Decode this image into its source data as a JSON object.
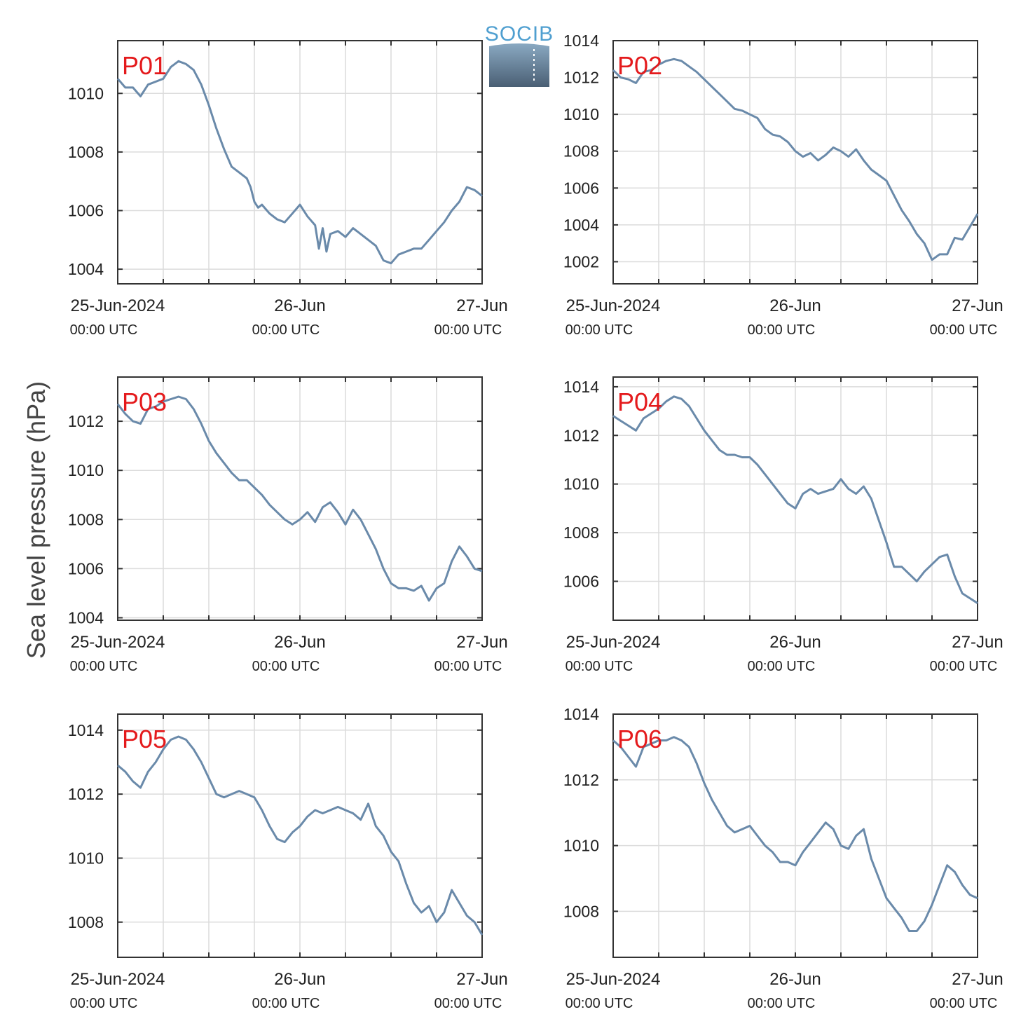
{
  "logo": {
    "text": "SOCIB"
  },
  "colors": {
    "line": "#6a8aaa",
    "station_label": "#e41a1c",
    "grid": "#dcdcdc",
    "axis": "#333333"
  },
  "chart_data": [
    {
      "type": "line",
      "station": "P01",
      "ylim": [
        1003.5,
        1011.8
      ],
      "yticks": [
        1004,
        1006,
        1008,
        1010
      ],
      "xlim": [
        0,
        48
      ],
      "xticks": [
        0,
        24,
        48
      ],
      "xticklabels": [
        [
          "25-Jun-2024",
          "00:00 UTC"
        ],
        [
          "26-Jun",
          "00:00 UTC"
        ],
        [
          "27-Jun",
          "00:00 UTC"
        ]
      ],
      "grid": true,
      "x": [
        0,
        1,
        2,
        3,
        4,
        5,
        6,
        7,
        8,
        9,
        10,
        11,
        12,
        13,
        14,
        15,
        16,
        17,
        17.5,
        18,
        18.5,
        19,
        20,
        21,
        22,
        23,
        24,
        25,
        26,
        26.5,
        27,
        27.5,
        28,
        29,
        30,
        31,
        32,
        33,
        34,
        35,
        36,
        37,
        38,
        39,
        40,
        41,
        42,
        43,
        44,
        45,
        46,
        47,
        48
      ],
      "y": [
        1010.5,
        1010.2,
        1010.2,
        1009.9,
        1010.3,
        1010.4,
        1010.5,
        1010.9,
        1011.1,
        1011.0,
        1010.8,
        1010.3,
        1009.6,
        1008.8,
        1008.1,
        1007.5,
        1007.3,
        1007.1,
        1006.8,
        1006.3,
        1006.1,
        1006.2,
        1005.9,
        1005.7,
        1005.6,
        1005.9,
        1006.2,
        1005.8,
        1005.5,
        1004.7,
        1005.4,
        1004.6,
        1005.2,
        1005.3,
        1005.1,
        1005.4,
        1005.2,
        1005.0,
        1004.8,
        1004.3,
        1004.2,
        1004.5,
        1004.6,
        1004.7,
        1004.7,
        1005.0,
        1005.3,
        1005.6,
        1006.0,
        1006.3,
        1006.8,
        1006.7,
        1006.5
      ]
    },
    {
      "type": "line",
      "station": "P02",
      "ylim": [
        1000.8,
        1014.0
      ],
      "yticks": [
        1002,
        1004,
        1006,
        1008,
        1010,
        1012,
        1014
      ],
      "xlim": [
        0,
        48
      ],
      "xticks": [
        0,
        24,
        48
      ],
      "xticklabels": [
        [
          "25-Jun-2024",
          "00:00 UTC"
        ],
        [
          "26-Jun",
          "00:00 UTC"
        ],
        [
          "27-Jun",
          "00:00 UTC"
        ]
      ],
      "grid": true,
      "x": [
        0,
        1,
        2,
        3,
        4,
        5,
        6,
        7,
        8,
        9,
        10,
        11,
        12,
        13,
        14,
        15,
        16,
        17,
        18,
        19,
        20,
        21,
        22,
        23,
        24,
        25,
        26,
        27,
        28,
        29,
        30,
        31,
        32,
        33,
        34,
        35,
        36,
        37,
        38,
        39,
        40,
        41,
        42,
        43,
        44,
        45,
        46,
        47,
        48
      ],
      "y": [
        1012.4,
        1012.0,
        1011.9,
        1011.7,
        1012.3,
        1012.4,
        1012.7,
        1012.9,
        1013.0,
        1012.9,
        1012.6,
        1012.3,
        1011.9,
        1011.5,
        1011.1,
        1010.7,
        1010.3,
        1010.2,
        1010.0,
        1009.8,
        1009.2,
        1008.9,
        1008.8,
        1008.5,
        1008.0,
        1007.7,
        1007.9,
        1007.5,
        1007.8,
        1008.2,
        1008.0,
        1007.7,
        1008.1,
        1007.5,
        1007.0,
        1006.7,
        1006.4,
        1005.6,
        1004.8,
        1004.2,
        1003.5,
        1003.0,
        1002.1,
        1002.4,
        1002.4,
        1003.3,
        1003.2,
        1003.9,
        1004.6
      ]
    },
    {
      "type": "line",
      "station": "P03",
      "ylim": [
        1003.9,
        1013.8
      ],
      "yticks": [
        1004,
        1006,
        1008,
        1010,
        1012
      ],
      "xlim": [
        0,
        48
      ],
      "xticks": [
        0,
        24,
        48
      ],
      "xticklabels": [
        [
          "25-Jun-2024",
          "00:00 UTC"
        ],
        [
          "26-Jun",
          "00:00 UTC"
        ],
        [
          "27-Jun",
          "00:00 UTC"
        ]
      ],
      "grid": true,
      "x": [
        0,
        1,
        2,
        3,
        4,
        5,
        6,
        7,
        8,
        9,
        10,
        11,
        12,
        13,
        14,
        15,
        16,
        17,
        18,
        19,
        20,
        21,
        22,
        23,
        24,
        25,
        26,
        27,
        28,
        29,
        30,
        31,
        32,
        33,
        34,
        35,
        36,
        37,
        38,
        39,
        40,
        41,
        42,
        43,
        44,
        45,
        46,
        47,
        48
      ],
      "y": [
        1012.7,
        1012.3,
        1012.0,
        1011.9,
        1012.5,
        1012.6,
        1012.8,
        1012.9,
        1013.0,
        1012.9,
        1012.5,
        1011.9,
        1011.2,
        1010.7,
        1010.3,
        1009.9,
        1009.6,
        1009.6,
        1009.3,
        1009.0,
        1008.6,
        1008.3,
        1008.0,
        1007.8,
        1008.0,
        1008.3,
        1007.9,
        1008.5,
        1008.7,
        1008.3,
        1007.8,
        1008.4,
        1008.0,
        1007.4,
        1006.8,
        1006.0,
        1005.4,
        1005.2,
        1005.2,
        1005.1,
        1005.3,
        1004.7,
        1005.2,
        1005.4,
        1006.3,
        1006.9,
        1006.5,
        1006.0,
        1005.9
      ]
    },
    {
      "type": "line",
      "station": "P04",
      "ylim": [
        1004.4,
        1014.4
      ],
      "yticks": [
        1006,
        1008,
        1010,
        1012,
        1014
      ],
      "xlim": [
        0,
        48
      ],
      "xticks": [
        0,
        24,
        48
      ],
      "xticklabels": [
        [
          "25-Jun-2024",
          "00:00 UTC"
        ],
        [
          "26-Jun",
          "00:00 UTC"
        ],
        [
          "27-Jun",
          "00:00 UTC"
        ]
      ],
      "grid": true,
      "x": [
        0,
        1,
        2,
        3,
        4,
        5,
        6,
        7,
        8,
        9,
        10,
        11,
        12,
        13,
        14,
        15,
        16,
        17,
        18,
        19,
        20,
        21,
        22,
        23,
        24,
        25,
        26,
        27,
        28,
        29,
        30,
        31,
        32,
        33,
        34,
        35,
        36,
        37,
        38,
        39,
        40,
        41,
        42,
        43,
        44,
        45,
        46,
        47,
        48
      ],
      "y": [
        1012.8,
        1012.6,
        1012.4,
        1012.2,
        1012.7,
        1012.9,
        1013.1,
        1013.4,
        1013.6,
        1013.5,
        1013.2,
        1012.7,
        1012.2,
        1011.8,
        1011.4,
        1011.2,
        1011.2,
        1011.1,
        1011.1,
        1010.8,
        1010.4,
        1010.0,
        1009.6,
        1009.2,
        1009.0,
        1009.6,
        1009.8,
        1009.6,
        1009.7,
        1009.8,
        1010.2,
        1009.8,
        1009.6,
        1009.9,
        1009.4,
        1008.5,
        1007.6,
        1006.6,
        1006.6,
        1006.3,
        1006.0,
        1006.4,
        1006.7,
        1007.0,
        1007.1,
        1006.2,
        1005.5,
        1005.3,
        1005.1
      ]
    },
    {
      "type": "line",
      "station": "P05",
      "ylim": [
        1006.9,
        1014.5
      ],
      "yticks": [
        1008,
        1010,
        1012,
        1014
      ],
      "xlim": [
        0,
        48
      ],
      "xticks": [
        0,
        24,
        48
      ],
      "xticklabels": [
        [
          "25-Jun-2024",
          "00:00 UTC"
        ],
        [
          "26-Jun",
          "00:00 UTC"
        ],
        [
          "27-Jun",
          "00:00 UTC"
        ]
      ],
      "grid": true,
      "x": [
        0,
        1,
        2,
        3,
        4,
        5,
        6,
        7,
        8,
        9,
        10,
        11,
        12,
        13,
        14,
        15,
        16,
        17,
        18,
        19,
        20,
        21,
        22,
        23,
        24,
        25,
        26,
        27,
        28,
        29,
        30,
        31,
        32,
        33,
        34,
        35,
        36,
        37,
        38,
        39,
        40,
        41,
        42,
        43,
        44,
        45,
        46,
        47,
        48
      ],
      "y": [
        1012.9,
        1012.7,
        1012.4,
        1012.2,
        1012.7,
        1013.0,
        1013.4,
        1013.7,
        1013.8,
        1013.7,
        1013.4,
        1013.0,
        1012.5,
        1012.0,
        1011.9,
        1012.0,
        1012.1,
        1012.0,
        1011.9,
        1011.5,
        1011.0,
        1010.6,
        1010.5,
        1010.8,
        1011.0,
        1011.3,
        1011.5,
        1011.4,
        1011.5,
        1011.6,
        1011.5,
        1011.4,
        1011.2,
        1011.7,
        1011.0,
        1010.7,
        1010.2,
        1009.9,
        1009.2,
        1008.6,
        1008.3,
        1008.5,
        1008.0,
        1008.3,
        1009.0,
        1008.6,
        1008.2,
        1008.0,
        1007.6
      ]
    },
    {
      "type": "line",
      "station": "P06",
      "ylim": [
        1006.6,
        1014.0
      ],
      "yticks": [
        1008,
        1010,
        1012,
        1014
      ],
      "xlim": [
        0,
        48
      ],
      "xticks": [
        0,
        24,
        48
      ],
      "xticklabels": [
        [
          "25-Jun-2024",
          "00:00 UTC"
        ],
        [
          "26-Jun",
          "00:00 UTC"
        ],
        [
          "27-Jun",
          "00:00 UTC"
        ]
      ],
      "grid": true,
      "x": [
        0,
        1,
        2,
        3,
        4,
        5,
        6,
        7,
        8,
        9,
        10,
        11,
        12,
        13,
        14,
        15,
        16,
        17,
        18,
        19,
        20,
        21,
        22,
        23,
        24,
        25,
        26,
        27,
        28,
        29,
        30,
        31,
        32,
        33,
        34,
        35,
        36,
        37,
        38,
        39,
        40,
        41,
        42,
        43,
        44,
        45,
        46,
        47,
        48
      ],
      "y": [
        1013.2,
        1013.0,
        1012.7,
        1012.4,
        1013.0,
        1013.1,
        1013.2,
        1013.2,
        1013.3,
        1013.2,
        1013.0,
        1012.5,
        1011.9,
        1011.4,
        1011.0,
        1010.6,
        1010.4,
        1010.5,
        1010.6,
        1010.3,
        1010.0,
        1009.8,
        1009.5,
        1009.5,
        1009.4,
        1009.8,
        1010.1,
        1010.4,
        1010.7,
        1010.5,
        1010.0,
        1009.9,
        1010.3,
        1010.5,
        1009.6,
        1009.0,
        1008.4,
        1008.1,
        1007.8,
        1007.4,
        1007.4,
        1007.7,
        1008.2,
        1008.8,
        1009.4,
        1009.2,
        1008.8,
        1008.5,
        1008.4
      ]
    }
  ],
  "shared": {
    "ylabel": "Sea level pressure (hPa)"
  }
}
